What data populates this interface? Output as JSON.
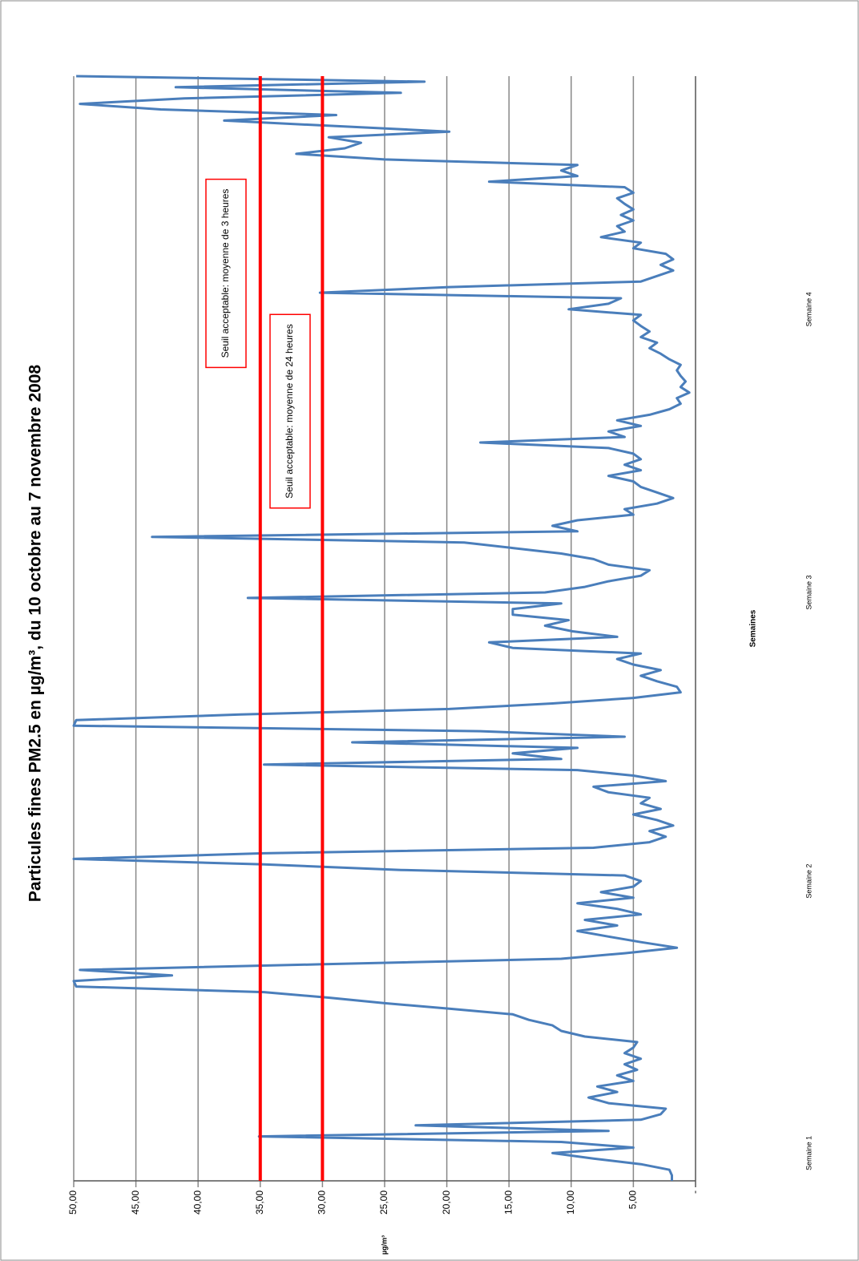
{
  "chart_data": {
    "type": "line",
    "title": "Particules fines PM2.5 en µg/m³, du 10 octobre au 7 novembre 2008",
    "x_axis_label": "Semaines",
    "y_axis_label": "µg/m³",
    "color": "#4a7ebb",
    "grid": true,
    "ylim": [
      0,
      50
    ],
    "yticks": [
      {
        "value": 0,
        "label": "-"
      },
      {
        "value": 5,
        "label": "5,00"
      },
      {
        "value": 10,
        "label": "10,00"
      },
      {
        "value": 15,
        "label": "15,00"
      },
      {
        "value": 20,
        "label": "20,00"
      },
      {
        "value": 25,
        "label": "25,00"
      },
      {
        "value": 30,
        "label": "30,00"
      },
      {
        "value": 35,
        "label": "35,00"
      },
      {
        "value": 40,
        "label": "40,00"
      },
      {
        "value": 45,
        "label": "45,00"
      },
      {
        "value": 50,
        "label": "50,00"
      }
    ],
    "reference_lines": [
      {
        "value": 35,
        "color": "#ff0000",
        "label": "Seuil acceptable: moyenne de 3 heures"
      },
      {
        "value": 30,
        "color": "#ff0000",
        "label": "Seuil acceptable: moyenne de 24 heures"
      }
    ],
    "categories": [
      null,
      null,
      null,
      null,
      null,
      "Semaine 1",
      null,
      null,
      null,
      null,
      null,
      null,
      null,
      null,
      null,
      null,
      null,
      null,
      null,
      null,
      null,
      null,
      null,
      null,
      null,
      null,
      null,
      null,
      null,
      null,
      null,
      null,
      null,
      null,
      null,
      null,
      null,
      null,
      null,
      null,
      null,
      null,
      null,
      null,
      null,
      null,
      null,
      null,
      null,
      null,
      null,
      null,
      null,
      null,
      "Semaine 2",
      null,
      null,
      null,
      null,
      null,
      null,
      null,
      null,
      null,
      null,
      null,
      null,
      null,
      null,
      null,
      null,
      null,
      null,
      null,
      null,
      null,
      null,
      null,
      null,
      null,
      null,
      null,
      null,
      null,
      null,
      null,
      null,
      null,
      null,
      null,
      null,
      null,
      null,
      null,
      null,
      null,
      null,
      null,
      null,
      null,
      null,
      null,
      null,
      null,
      null,
      null,
      "Semaine 3",
      null,
      null,
      null,
      null,
      null,
      null,
      null,
      null,
      null,
      null,
      null,
      null,
      null,
      null,
      null,
      null,
      null,
      null,
      null,
      null,
      null,
      null,
      null,
      null,
      null,
      null,
      null,
      null,
      null,
      null,
      null,
      null,
      null,
      null,
      null,
      null,
      null,
      null,
      null,
      null,
      null,
      null,
      null,
      null,
      null,
      null,
      null,
      null,
      null,
      null,
      "Semaine 4",
      null,
      null,
      null,
      null,
      null,
      null,
      null,
      null,
      null,
      null,
      null,
      null,
      null,
      null,
      null,
      null,
      null,
      null,
      null,
      null,
      null,
      null,
      null,
      null,
      null,
      null,
      null,
      null,
      null,
      null,
      null,
      null,
      null,
      null,
      null,
      null,
      null,
      null,
      null,
      null,
      null,
      null
    ],
    "values": [
      1.9,
      1.9,
      2.1,
      4.4,
      8.2,
      11.5,
      5,
      10.8,
      35.1,
      7,
      22.5,
      4.4,
      2.8,
      2.4,
      7,
      8.6,
      6.3,
      7.9,
      5,
      6.3,
      4.7,
      5.7,
      4.4,
      5.7,
      5,
      4.7,
      8.9,
      10.8,
      11.5,
      13.4,
      14.7,
      19.8,
      25,
      29.5,
      34.7,
      49.8,
      50,
      42.1,
      49.5,
      30.2,
      10.8,
      5.7,
      1.5,
      4.4,
      7,
      9.5,
      6.3,
      8.9,
      4.4,
      6.3,
      9.5,
      5,
      7.6,
      5,
      4.4,
      5.7,
      23.7,
      34.7,
      50,
      34.7,
      8.2,
      3.7,
      2.4,
      3.7,
      1.8,
      3.1,
      5,
      2.8,
      4.4,
      3.7,
      7,
      8.2,
      2.4,
      5,
      9.5,
      34.7,
      10.8,
      14.7,
      9.5,
      27.6,
      5.7,
      17.3,
      50,
      49.8,
      36.6,
      19.8,
      11.5,
      5,
      1.2,
      1.5,
      3.1,
      4.4,
      2.8,
      5,
      6.3,
      4.4,
      14.7,
      16.6,
      6.3,
      9.9,
      12.1,
      10.2,
      14.7,
      14.7,
      10.8,
      36,
      12.1,
      8.9,
      7,
      4.4,
      3.7,
      7,
      8.2,
      10.8,
      14.7,
      18.6,
      43.7,
      9.5,
      11.5,
      9.5,
      5,
      5.7,
      3.1,
      1.8,
      3.1,
      4.4,
      5,
      7,
      4.4,
      5.7,
      4.4,
      5,
      7,
      17.3,
      5.7,
      7,
      4.4,
      6.3,
      3.7,
      2.1,
      1.2,
      1.5,
      0.5,
      1.2,
      0.8,
      1.2,
      1.5,
      1.2,
      2.1,
      2.8,
      3.7,
      3.1,
      4.4,
      3.7,
      4.4,
      5,
      4.4,
      10.2,
      7,
      6,
      30.2,
      19.8,
      4.4,
      3.1,
      1.8,
      2.8,
      1.8,
      2.4,
      5,
      4.4,
      7.6,
      5.7,
      6.3,
      5,
      6,
      5,
      5.7,
      6.3,
      5,
      5.7,
      16.6,
      9.5,
      10.8,
      9.5,
      25,
      32.1,
      28.2,
      26.9,
      29.5,
      19.8,
      28.9,
      37.9,
      28.9,
      43,
      49.5,
      41.1,
      23.7,
      41.8,
      21.8,
      49.8
    ]
  }
}
